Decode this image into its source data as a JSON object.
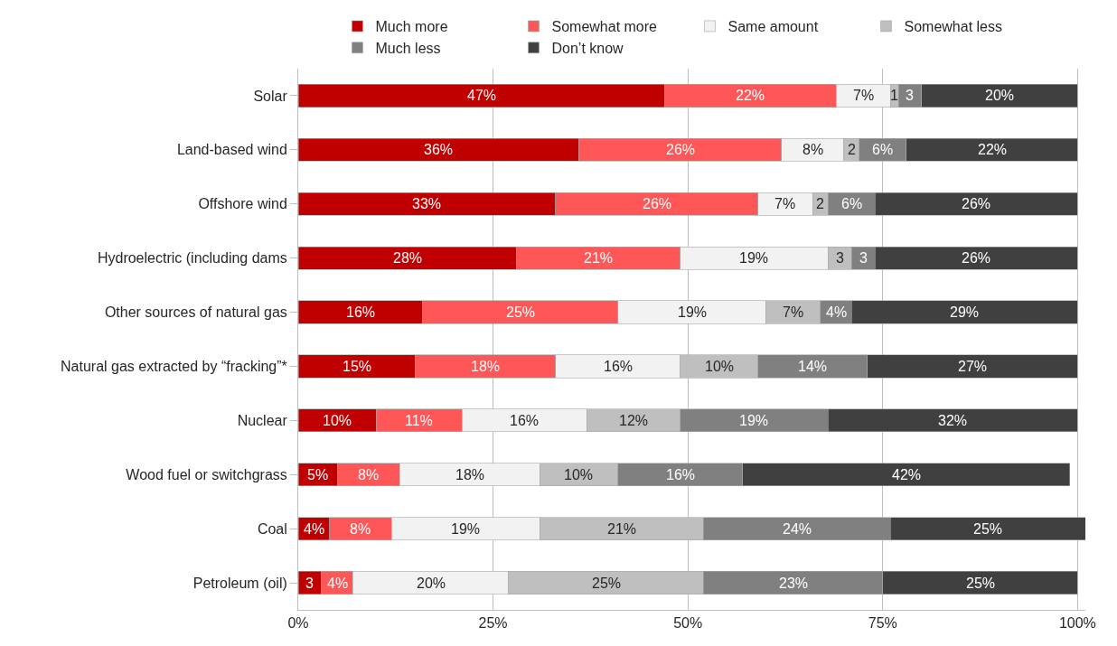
{
  "chart_data": {
    "type": "bar",
    "orientation": "horizontal",
    "stacked": true,
    "legend": "top",
    "grid": "x",
    "categories": [
      "Solar",
      "Land-based wind",
      "Offshore wind",
      "Hydroelectric (including dams",
      "Other sources of natural gas",
      "Natural gas extracted by “fracking”*",
      "Nuclear",
      "Wood fuel or switchgrass",
      "Coal",
      "Petroleum (oil)"
    ],
    "xlim": [
      0,
      101
    ],
    "xticks": [
      {
        "value": 0,
        "label": "0%"
      },
      {
        "value": 25,
        "label": "25%"
      },
      {
        "value": 50,
        "label": "50%"
      },
      {
        "value": 75,
        "label": "75%"
      },
      {
        "value": 100,
        "label": "100%"
      }
    ],
    "series": [
      {
        "name": "Much more",
        "color": "#c00000",
        "values": [
          47,
          36,
          33,
          28,
          16,
          15,
          10,
          5,
          4,
          3
        ],
        "value_labels": [
          "47%",
          "36%",
          "33%",
          "28%",
          "16%",
          "15%",
          "10%",
          "5%",
          "4%",
          "3"
        ]
      },
      {
        "name": "Somewhat more",
        "color": "#ff5757",
        "values": [
          22,
          26,
          26,
          21,
          25,
          18,
          11,
          8,
          8,
          4
        ],
        "value_labels": [
          "22%",
          "26%",
          "26%",
          "21%",
          "25%",
          "18%",
          "11%",
          "8%",
          "8%",
          "4%"
        ]
      },
      {
        "name": "Same amount",
        "color": "#f2f2f2",
        "values": [
          7,
          8,
          7,
          19,
          19,
          16,
          16,
          18,
          19,
          20
        ],
        "value_labels": [
          "7%",
          "8%",
          "7%",
          "19%",
          "19%",
          "16%",
          "16%",
          "18%",
          "19%",
          "20%"
        ]
      },
      {
        "name": "Somewhat less",
        "color": "#bfbfbf",
        "values": [
          1,
          2,
          2,
          3,
          7,
          10,
          12,
          10,
          21,
          25
        ],
        "value_labels": [
          "1",
          "2",
          "2",
          "3",
          "7%",
          "10%",
          "12%",
          "10%",
          "21%",
          "25%"
        ]
      },
      {
        "name": "Much less",
        "color": "#808080",
        "values": [
          3,
          6,
          6,
          3,
          4,
          14,
          19,
          16,
          24,
          23
        ],
        "value_labels": [
          "3",
          "6%",
          "6%",
          "3",
          "4%",
          "14%",
          "19%",
          "16%",
          "24%",
          "23%"
        ]
      },
      {
        "name": "Don’t know",
        "color": "#404040",
        "values": [
          20,
          22,
          26,
          26,
          29,
          27,
          32,
          42,
          25,
          25
        ],
        "value_labels": [
          "20%",
          "22%",
          "26%",
          "26%",
          "29%",
          "27%",
          "32%",
          "42%",
          "25%",
          "25%"
        ]
      }
    ]
  }
}
